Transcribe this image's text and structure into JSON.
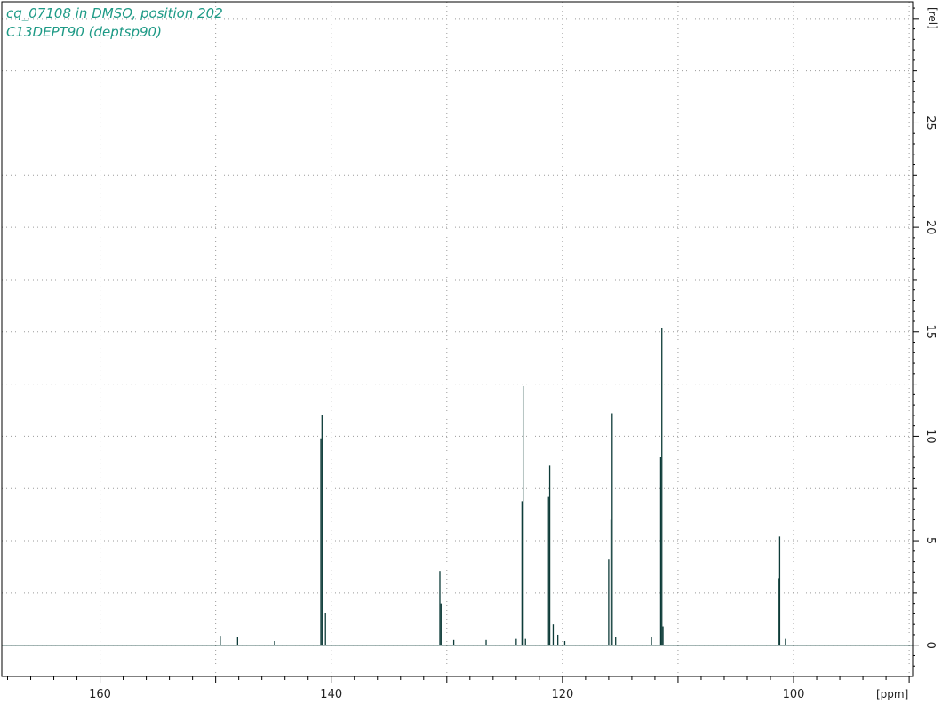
{
  "colors": {
    "title": "#1e9a86",
    "spectrum": "#0d3b38",
    "grid": "#9a9a9a",
    "frame": "#000000"
  },
  "chart_data": {
    "type": "line",
    "title": "cq_07108 in DMSO, position 202",
    "subtitle": "C13DEPT90 (deptsp90)",
    "xlabel": "[ppm]",
    "ylabel": "[rel]",
    "x_reversed": true,
    "xlim": [
      168.5,
      89.7
    ],
    "ylim": [
      -1.5,
      30.8
    ],
    "grid": true,
    "x_ticks": [
      160,
      140,
      120,
      100
    ],
    "y_ticks": [
      0,
      5,
      10,
      15,
      20,
      25
    ],
    "x_tick_labels": [
      "160",
      "140",
      "120",
      "100"
    ],
    "y_tick_labels": [
      "0",
      "5",
      "10",
      "15",
      "20",
      "25"
    ],
    "peaks": [
      {
        "ppm": 149.6,
        "intensity": 0.45
      },
      {
        "ppm": 148.1,
        "intensity": 0.4
      },
      {
        "ppm": 144.9,
        "intensity": 0.2
      },
      {
        "ppm": 140.9,
        "intensity": 9.9
      },
      {
        "ppm": 140.8,
        "intensity": 11.0
      },
      {
        "ppm": 140.5,
        "intensity": 1.55
      },
      {
        "ppm": 130.6,
        "intensity": 3.55
      },
      {
        "ppm": 130.5,
        "intensity": 2.0
      },
      {
        "ppm": 129.4,
        "intensity": 0.25
      },
      {
        "ppm": 126.6,
        "intensity": 0.25
      },
      {
        "ppm": 124.0,
        "intensity": 0.3
      },
      {
        "ppm": 123.5,
        "intensity": 6.9
      },
      {
        "ppm": 123.4,
        "intensity": 12.4
      },
      {
        "ppm": 123.2,
        "intensity": 0.3
      },
      {
        "ppm": 121.2,
        "intensity": 7.1
      },
      {
        "ppm": 121.1,
        "intensity": 8.6
      },
      {
        "ppm": 120.8,
        "intensity": 1.0
      },
      {
        "ppm": 120.4,
        "intensity": 0.5
      },
      {
        "ppm": 119.8,
        "intensity": 0.2
      },
      {
        "ppm": 116.0,
        "intensity": 4.1
      },
      {
        "ppm": 115.8,
        "intensity": 6.0
      },
      {
        "ppm": 115.7,
        "intensity": 11.1
      },
      {
        "ppm": 115.4,
        "intensity": 0.4
      },
      {
        "ppm": 112.3,
        "intensity": 0.4
      },
      {
        "ppm": 111.5,
        "intensity": 9.0
      },
      {
        "ppm": 111.4,
        "intensity": 15.2
      },
      {
        "ppm": 111.3,
        "intensity": 0.9
      },
      {
        "ppm": 101.3,
        "intensity": 3.2
      },
      {
        "ppm": 101.2,
        "intensity": 5.2
      },
      {
        "ppm": 100.7,
        "intensity": 0.3
      }
    ]
  }
}
